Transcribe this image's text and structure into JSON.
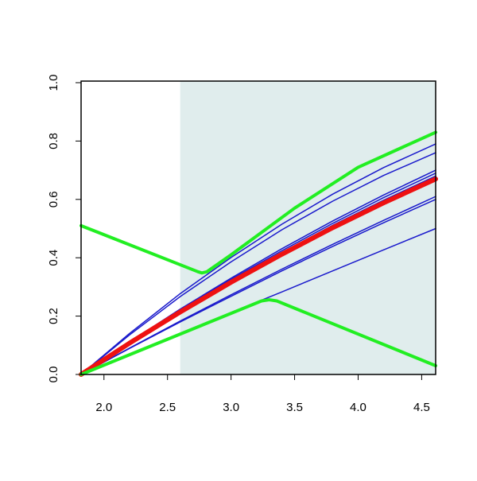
{
  "chart_data": {
    "type": "line",
    "xlim": [
      1.82,
      4.61
    ],
    "ylim": [
      0,
      1.0
    ],
    "xticks": [
      {
        "value": 2,
        "label": "2.0"
      },
      2.5,
      {
        "value": 3,
        "label": "3.0"
      },
      3.5,
      {
        "value": 4,
        "label": "4.0"
      },
      4.5
    ],
    "yticks": [
      {
        "value": 0,
        "label": "0.0"
      },
      0.2,
      0.4,
      0.6,
      0.8,
      {
        "value": 1,
        "label": "1.0"
      }
    ],
    "shade": {
      "from": 2.6,
      "color": "#e0eded"
    },
    "series": [
      {
        "color": "#1a1acc",
        "width": 1.5,
        "x": [
          1.82,
          2.2,
          2.6,
          3.0,
          3.4,
          3.8,
          4.2,
          4.61
        ],
        "values": [
          0,
          0.14,
          0.277,
          0.401,
          0.515,
          0.618,
          0.709,
          0.79
        ]
      },
      {
        "color": "#1a1acc",
        "width": 1.5,
        "x": [
          1.82,
          2.2,
          2.6,
          3.0,
          3.4,
          3.8,
          4.2,
          4.61
        ],
        "values": [
          0,
          0.135,
          0.267,
          0.386,
          0.496,
          0.594,
          0.682,
          0.76
        ]
      },
      {
        "color": "#1a1acc",
        "width": 1.5,
        "x": [
          1.82,
          2.2,
          2.6,
          3.0,
          3.4,
          3.8,
          4.2,
          4.61
        ],
        "values": [
          0,
          0.111,
          0.224,
          0.33,
          0.431,
          0.526,
          0.615,
          0.7
        ]
      },
      {
        "color": "#1a1acc",
        "width": 1.5,
        "x": [
          1.82,
          2.2,
          2.6,
          3.0,
          3.4,
          3.8,
          4.2,
          4.61
        ],
        "values": [
          0,
          0.11,
          0.221,
          0.326,
          0.424,
          0.518,
          0.606,
          0.69
        ]
      },
      {
        "color": "#1a1acc",
        "width": 1.5,
        "x": [
          1.82,
          2.2,
          2.6,
          3.0,
          3.4,
          3.8,
          4.2,
          4.61
        ],
        "values": [
          0,
          0.108,
          0.218,
          0.321,
          0.418,
          0.511,
          0.597,
          0.68
        ]
      },
      {
        "color": "#1a1acc",
        "width": 1.5,
        "x": [
          1.82,
          2.2,
          2.6,
          3.0,
          3.4,
          3.8,
          4.2,
          4.61
        ],
        "values": [
          0,
          0.09,
          0.183,
          0.273,
          0.361,
          0.446,
          0.528,
          0.61
        ]
      },
      {
        "color": "#1a1acc",
        "width": 1.5,
        "x": [
          1.82,
          2.2,
          2.6,
          3.0,
          3.4,
          3.8,
          4.2,
          4.61
        ],
        "values": [
          0,
          0.089,
          0.18,
          0.268,
          0.355,
          0.439,
          0.52,
          0.6
        ]
      },
      {
        "color": "#1a1acc",
        "width": 1.5,
        "x": [
          1.82,
          2.2,
          2.6,
          3.0,
          3.4,
          3.8,
          4.2,
          4.61
        ],
        "values": [
          0,
          0.068,
          0.14,
          0.212,
          0.283,
          0.355,
          0.427,
          0.5
        ]
      },
      {
        "color": "#ee1111",
        "width": 6,
        "x": [
          1.82,
          2.2,
          2.6,
          3.0,
          3.4,
          3.8,
          4.2,
          4.61
        ],
        "values": [
          0,
          0.107,
          0.214,
          0.316,
          0.412,
          0.503,
          0.588,
          0.67
        ]
      },
      {
        "color": "#22ee22",
        "width": 4,
        "x": [
          1.82,
          2.74,
          2.77,
          2.81,
          3.0,
          3.5,
          4.0,
          4.61
        ],
        "values": [
          0.51,
          0.352,
          0.348,
          0.352,
          0.41,
          0.57,
          0.71,
          0.83
        ]
      },
      {
        "color": "#22ee22",
        "width": 4,
        "x": [
          1.82,
          3.24,
          3.3,
          3.36,
          4.61
        ],
        "values": [
          0,
          0.252,
          0.256,
          0.252,
          0.03
        ]
      }
    ]
  }
}
